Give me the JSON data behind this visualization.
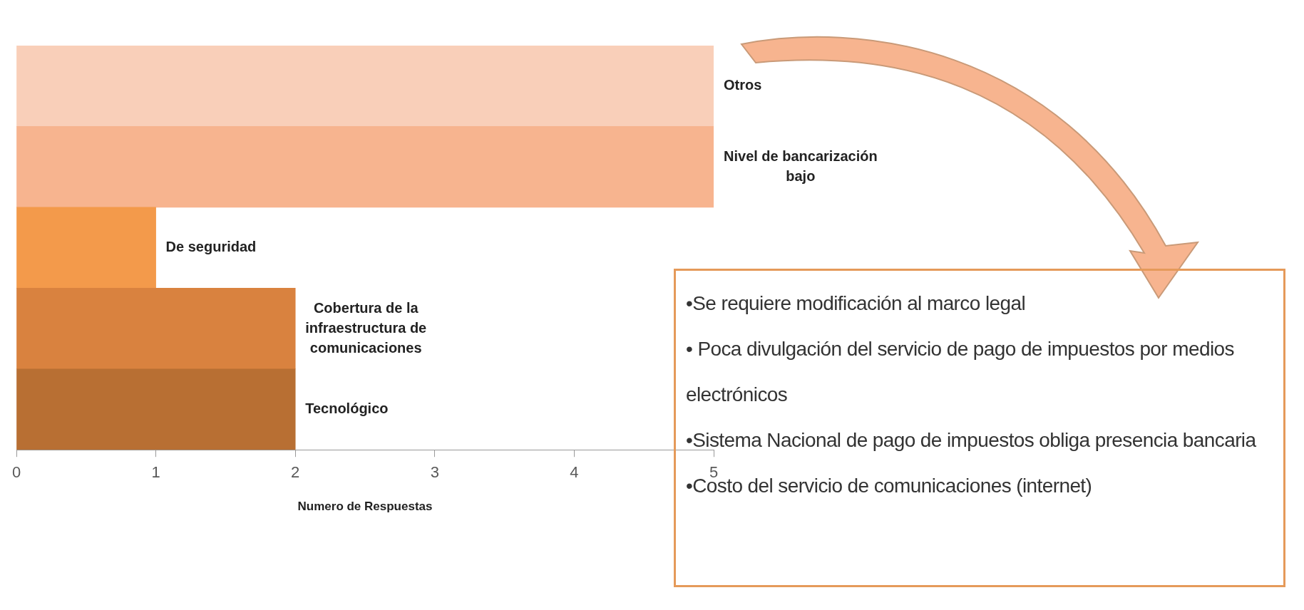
{
  "chart_data": {
    "type": "bar",
    "orientation": "horizontal",
    "xlabel": "Numero de Respuestas",
    "categories": [
      "Otros",
      "Nivel de bancarización bajo",
      "De seguridad",
      "Cobertura de la infraestructura de comunicaciones",
      "Tecnológico"
    ],
    "values": [
      5,
      5,
      1,
      2,
      2
    ],
    "colors": [
      "#f9cfb9",
      "#f7b48f",
      "#f39a4b",
      "#d9823f",
      "#b86f33"
    ],
    "xlim": [
      0,
      5
    ],
    "xticks": [
      0,
      1,
      2,
      3,
      4,
      5
    ],
    "grid": false,
    "legend": false,
    "annotations": [
      "•Se requiere modificación al marco legal",
      "• Poca divulgación del servicio de pago de impuestos por medios electrónicos",
      "•Sistema Nacional de pago de impuestos obliga presencia bancaria",
      "•Costo del servicio de comunicaciones (internet)"
    ]
  }
}
